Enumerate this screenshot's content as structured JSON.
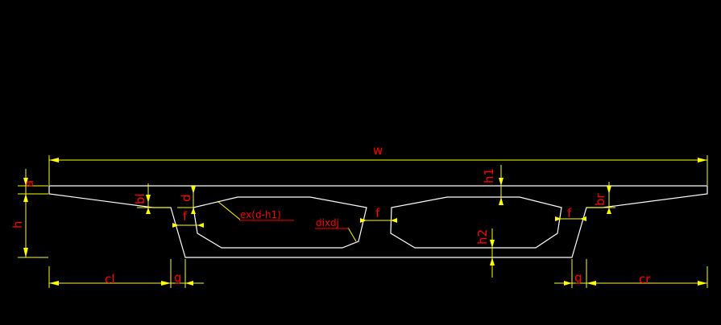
{
  "labels": {
    "w": "w",
    "a": "a",
    "h": "h",
    "h1": "h1",
    "h2": "h2",
    "bl": "bl",
    "br": "br",
    "d": "d",
    "f_left": "f",
    "f_mid": "f",
    "f_right": "f",
    "g_left": "g",
    "g_right": "g",
    "cl": "cl",
    "cr": "cr",
    "e": "ex(d-h1)",
    "di": "dixdj"
  },
  "colors": {
    "background": "#000000",
    "outline": "#ffffff",
    "dimension": "#ffff00",
    "label": "#ff0000"
  }
}
